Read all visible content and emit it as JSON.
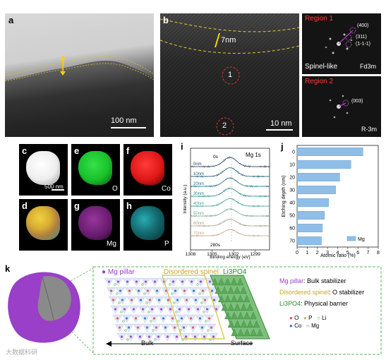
{
  "panels": {
    "a": {
      "label": "a",
      "scale_bar": "100 nm"
    },
    "b": {
      "label": "b",
      "thickness": "7nm",
      "region1": "1",
      "region2": "2",
      "scale_bar": "10 nm"
    },
    "fft1": {
      "region": "Region 1",
      "spots": [
        "(400)",
        "(311)",
        "(1-1-1)"
      ],
      "phase": "Spinel-like",
      "group": "Fd3m"
    },
    "fft2": {
      "region": "Region 2",
      "spots": [
        "(003)"
      ],
      "group": "R-3m"
    },
    "c": {
      "label": "c",
      "scale_bar": "500 nm"
    },
    "e": {
      "label": "e",
      "element": "O",
      "color": "#19c22a"
    },
    "f": {
      "label": "f",
      "element": "Co",
      "color": "#e01818"
    },
    "d": {
      "label": "d"
    },
    "g": {
      "label": "g",
      "element": "Mg",
      "color": "#9a2ea0"
    },
    "h": {
      "label": "h",
      "element": "P",
      "color": "#22c3cf"
    },
    "i": {
      "label": "i",
      "title": "Mg 1s",
      "start": "0s",
      "end": "280s"
    },
    "j": {
      "label": "j"
    },
    "k": {
      "label": "k",
      "header_mg": "Mg pillar",
      "header_spinel": "Disordered spinel",
      "header_li3po4": "Li3PO4",
      "legend_mg_name": "Mg pillar",
      "legend_mg_desc": ": Bulk stabilizer",
      "legend_sp_name": "Disordered spinel",
      "legend_sp_desc": ": O stabilizer",
      "legend_lp_name": "Li3PO4",
      "legend_lp_desc": ": Physical barrier",
      "atoms": [
        "O",
        "P",
        "Li",
        "Co",
        "Mg"
      ],
      "bulk": "Bulk",
      "surface": "Surface"
    },
    "watermark": "大数据科研"
  },
  "chart_data": [
    {
      "type": "line",
      "title": "Mg 1s",
      "xlabel": "Binding energy (eV)",
      "ylabel": "Intensity (a.u.)",
      "xlim": [
        1308,
        1297
      ],
      "xticks": [
        1308,
        1305,
        1302,
        1299
      ],
      "series": [
        {
          "name": "0nm",
          "color": "#1f3d5c"
        },
        {
          "name": "10nm",
          "color": "#1f5d78"
        },
        {
          "name": "20nm",
          "color": "#1f7288"
        },
        {
          "name": "30nm",
          "color": "#268a8e"
        },
        {
          "name": "40nm",
          "color": "#46a296"
        },
        {
          "name": "50nm",
          "color": "#74a88e"
        },
        {
          "name": "60nm",
          "color": "#a3a68a"
        },
        {
          "name": "70nm",
          "color": "#c7a88e"
        }
      ],
      "peak_position": 1302.5
    },
    {
      "type": "bar",
      "orientation": "horizontal",
      "xlabel": "Atomic ratio (%)",
      "ylabel": "Etching depth (nm)",
      "legend": "Mg",
      "legend_position": "bottom-right",
      "xlim": [
        0,
        8
      ],
      "xticks": [
        0,
        1,
        2,
        3,
        4,
        5,
        6,
        7,
        8
      ],
      "categories": [
        "0",
        "10",
        "20",
        "30",
        "40",
        "50",
        "60",
        "70"
      ],
      "values": [
        6.5,
        5.3,
        4.2,
        3.8,
        3.1,
        2.7,
        2.5,
        2.4
      ],
      "color": "#8fbfe8"
    }
  ]
}
